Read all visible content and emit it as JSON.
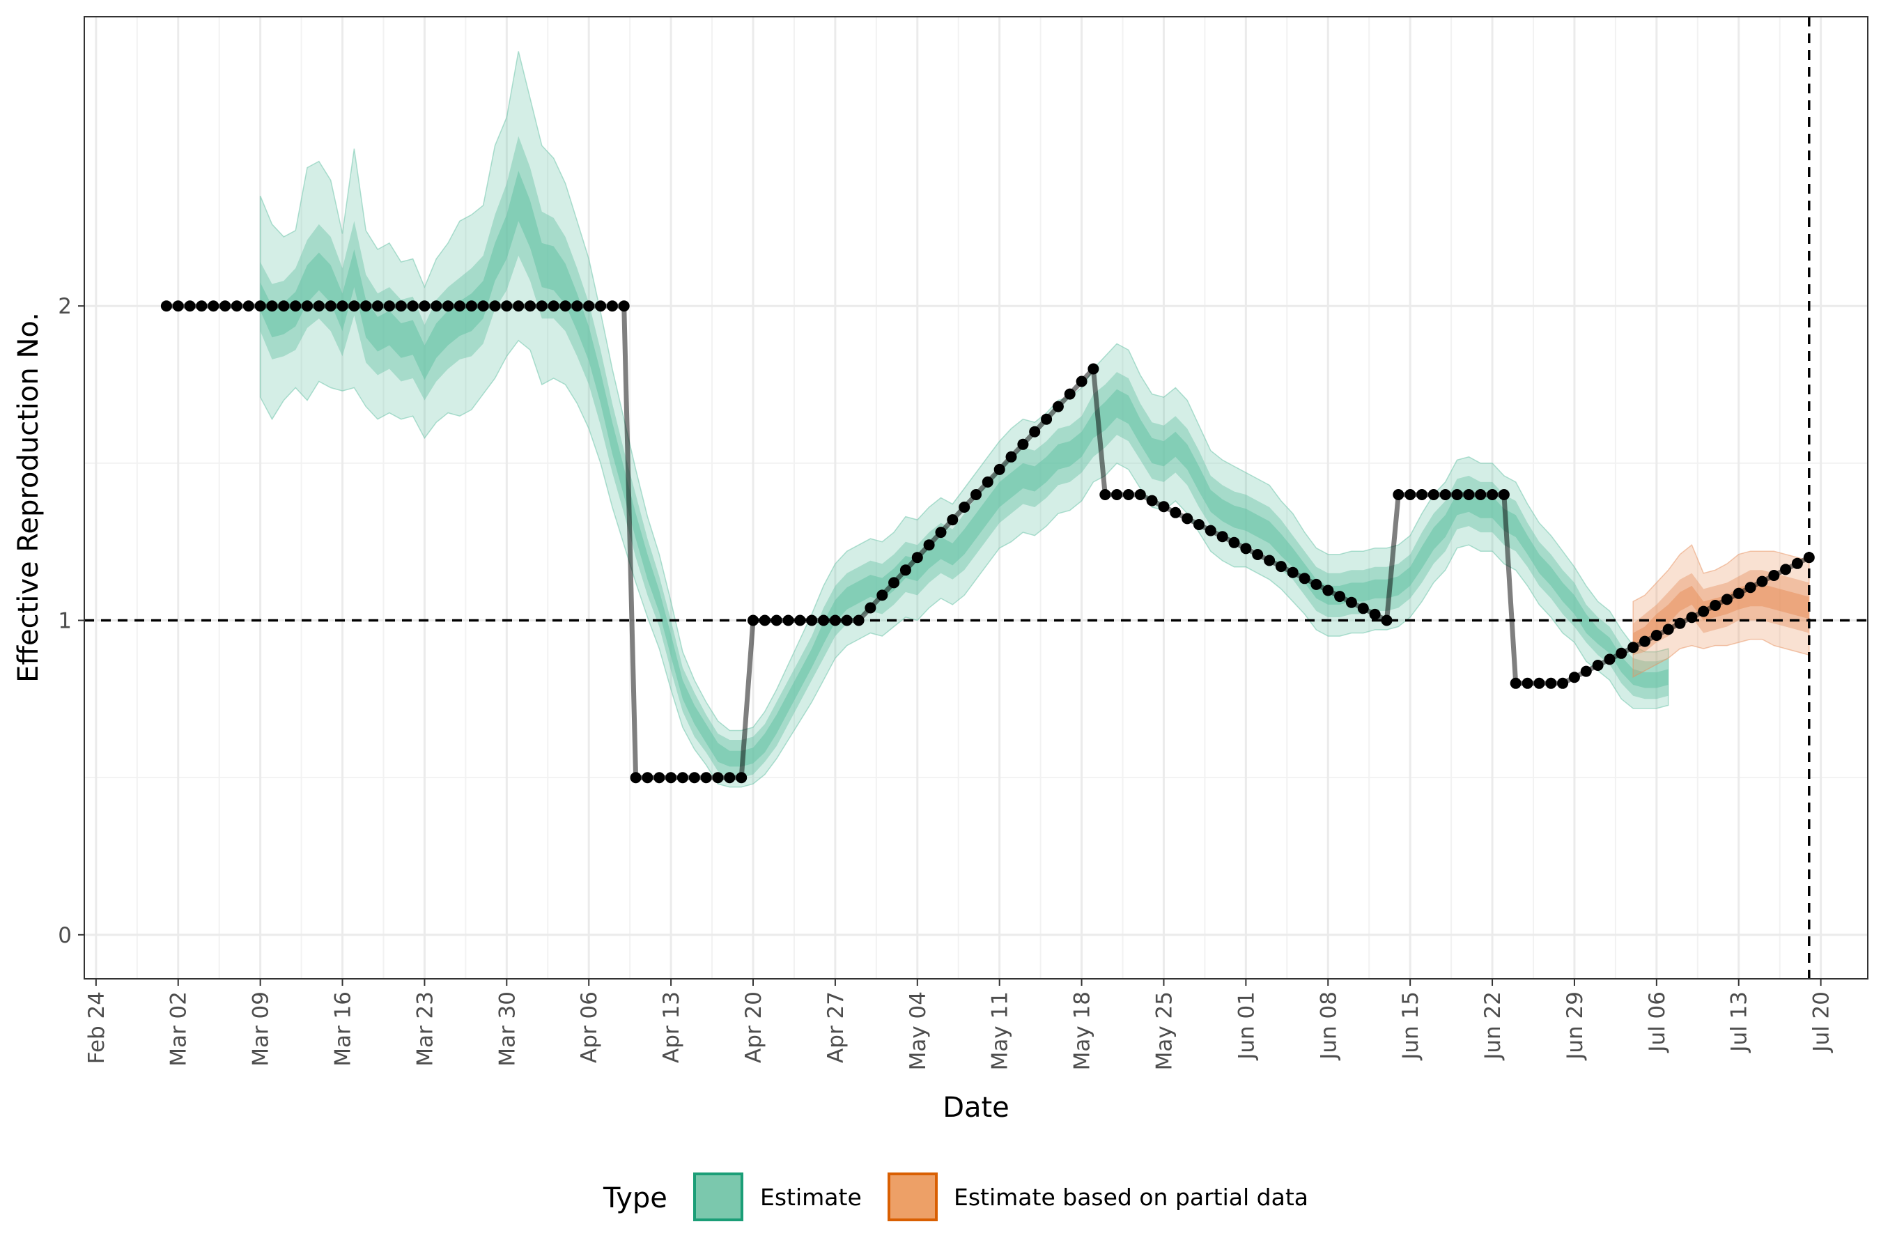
{
  "chart_data": {
    "type": "line",
    "xlabel": "Date",
    "ylabel": "Effective Reproduction No.",
    "ylim": [
      -0.14,
      2.92
    ],
    "yticks": [
      0,
      1,
      2
    ],
    "xlim": [
      "2020-02-23",
      "2020-07-24"
    ],
    "xticks": [
      "2020-02-24",
      "2020-03-02",
      "2020-03-09",
      "2020-03-16",
      "2020-03-23",
      "2020-03-30",
      "2020-04-06",
      "2020-04-13",
      "2020-04-20",
      "2020-04-27",
      "2020-05-04",
      "2020-05-11",
      "2020-05-18",
      "2020-05-25",
      "2020-06-01",
      "2020-06-08",
      "2020-06-15",
      "2020-06-22",
      "2020-06-29",
      "2020-07-06",
      "2020-07-13",
      "2020-07-20"
    ],
    "xtick_labels": [
      "Feb 24",
      "Mar 02",
      "Mar 09",
      "Mar 16",
      "Mar 23",
      "Mar 30",
      "Apr 06",
      "Apr 13",
      "Apr 20",
      "Apr 27",
      "May 04",
      "May 11",
      "May 18",
      "May 25",
      "Jun 01",
      "Jun 08",
      "Jun 15",
      "Jun 22",
      "Jun 29",
      "Jul 06",
      "Jul 13",
      "Jul 20"
    ],
    "grid": true,
    "reference_lines": {
      "y": 1,
      "x": "2020-07-19"
    },
    "truth": {
      "segments": [
        {
          "start": "2020-03-01",
          "end": "2020-04-09",
          "from": 2.0,
          "to": 2.0
        },
        {
          "start": "2020-04-10",
          "end": "2020-04-19",
          "from": 0.5,
          "to": 0.5
        },
        {
          "start": "2020-04-20",
          "end": "2020-04-29",
          "from": 1.0,
          "to": 1.0
        },
        {
          "start": "2020-04-29",
          "end": "2020-05-19",
          "from": 1.0,
          "to": 1.8
        },
        {
          "start": "2020-05-20",
          "end": "2020-05-23",
          "from": 1.4,
          "to": 1.4
        },
        {
          "start": "2020-05-23",
          "end": "2020-06-13",
          "from": 1.4,
          "to": 1.0
        },
        {
          "start": "2020-06-14",
          "end": "2020-06-23",
          "from": 1.4,
          "to": 1.4
        },
        {
          "start": "2020-06-24",
          "end": "2020-06-28",
          "from": 0.8,
          "to": 0.8
        },
        {
          "start": "2020-06-28",
          "end": "2020-07-19",
          "from": 0.8,
          "to": 1.2
        }
      ]
    },
    "estimate": {
      "name": "Estimate",
      "color": "#1b9e77",
      "fill": "#66c2a5",
      "start": "2020-03-09",
      "median": [
        2.03,
        1.95,
        1.96,
        1.99,
        2.07,
        2.11,
        2.07,
        1.98,
        2.12,
        1.96,
        1.91,
        1.93,
        1.89,
        1.9,
        1.82,
        1.89,
        1.93,
        1.96,
        1.98,
        2.02,
        2.14,
        2.22,
        2.35,
        2.26,
        2.13,
        2.12,
        2.07,
        1.98,
        1.88,
        1.74,
        1.58,
        1.44,
        1.3,
        1.17,
        1.06,
        0.92,
        0.78,
        0.7,
        0.64,
        0.58,
        0.56,
        0.56,
        0.57,
        0.61,
        0.67,
        0.74,
        0.81,
        0.88,
        0.96,
        1.03,
        1.07,
        1.09,
        1.11,
        1.1,
        1.13,
        1.17,
        1.16,
        1.2,
        1.23,
        1.21,
        1.25,
        1.3,
        1.35,
        1.4,
        1.43,
        1.46,
        1.45,
        1.48,
        1.52,
        1.53,
        1.56,
        1.62,
        1.65,
        1.69,
        1.67,
        1.6,
        1.54,
        1.53,
        1.56,
        1.52,
        1.45,
        1.38,
        1.35,
        1.33,
        1.32,
        1.3,
        1.28,
        1.24,
        1.2,
        1.15,
        1.1,
        1.08,
        1.08,
        1.09,
        1.09,
        1.1,
        1.1,
        1.11,
        1.14,
        1.2,
        1.26,
        1.3,
        1.37,
        1.38,
        1.36,
        1.36,
        1.32,
        1.3,
        1.24,
        1.18,
        1.14,
        1.09,
        1.05,
        0.99,
        0.95,
        0.92,
        0.86,
        0.82,
        0.81,
        0.81,
        0.82
      ],
      "inner": [
        0.045,
        0.05,
        0.05,
        0.055,
        0.06,
        0.06,
        0.06,
        0.06,
        0.06,
        0.06,
        0.055,
        0.055,
        0.055,
        0.055,
        0.055,
        0.055,
        0.055,
        0.055,
        0.06,
        0.06,
        0.06,
        0.07,
        0.08,
        0.075,
        0.07,
        0.07,
        0.065,
        0.06,
        0.055,
        0.05,
        0.05,
        0.045,
        0.04,
        0.04,
        0.035,
        0.035,
        0.03,
        0.03,
        0.03,
        0.03,
        0.025,
        0.025,
        0.025,
        0.03,
        0.03,
        0.03,
        0.03,
        0.03,
        0.035,
        0.035,
        0.035,
        0.035,
        0.035,
        0.035,
        0.035,
        0.035,
        0.035,
        0.035,
        0.035,
        0.035,
        0.04,
        0.04,
        0.04,
        0.04,
        0.04,
        0.04,
        0.04,
        0.04,
        0.04,
        0.04,
        0.04,
        0.04,
        0.045,
        0.045,
        0.045,
        0.04,
        0.04,
        0.04,
        0.04,
        0.04,
        0.04,
        0.035,
        0.035,
        0.035,
        0.035,
        0.035,
        0.035,
        0.035,
        0.03,
        0.03,
        0.03,
        0.03,
        0.03,
        0.03,
        0.03,
        0.03,
        0.03,
        0.03,
        0.03,
        0.035,
        0.035,
        0.035,
        0.035,
        0.035,
        0.035,
        0.035,
        0.035,
        0.035,
        0.03,
        0.03,
        0.03,
        0.03,
        0.03,
        0.03,
        0.025,
        0.025,
        0.025,
        0.025,
        0.025,
        0.025,
        0.025
      ],
      "mid": [
        0.11,
        0.12,
        0.12,
        0.13,
        0.14,
        0.15,
        0.15,
        0.14,
        0.15,
        0.14,
        0.13,
        0.13,
        0.13,
        0.13,
        0.12,
        0.13,
        0.13,
        0.13,
        0.14,
        0.14,
        0.15,
        0.17,
        0.19,
        0.18,
        0.17,
        0.16,
        0.15,
        0.14,
        0.13,
        0.12,
        0.11,
        0.1,
        0.1,
        0.09,
        0.08,
        0.08,
        0.07,
        0.07,
        0.06,
        0.06,
        0.06,
        0.06,
        0.06,
        0.06,
        0.07,
        0.07,
        0.07,
        0.07,
        0.08,
        0.08,
        0.08,
        0.08,
        0.08,
        0.08,
        0.08,
        0.08,
        0.08,
        0.08,
        0.08,
        0.08,
        0.09,
        0.09,
        0.09,
        0.09,
        0.09,
        0.09,
        0.09,
        0.09,
        0.09,
        0.09,
        0.09,
        0.1,
        0.1,
        0.1,
        0.1,
        0.09,
        0.09,
        0.09,
        0.09,
        0.09,
        0.09,
        0.08,
        0.08,
        0.08,
        0.08,
        0.08,
        0.08,
        0.08,
        0.07,
        0.07,
        0.07,
        0.07,
        0.07,
        0.07,
        0.07,
        0.07,
        0.07,
        0.07,
        0.07,
        0.08,
        0.08,
        0.08,
        0.08,
        0.08,
        0.08,
        0.08,
        0.08,
        0.08,
        0.07,
        0.07,
        0.07,
        0.07,
        0.07,
        0.06,
        0.06,
        0.06,
        0.06,
        0.06,
        0.06,
        0.06,
        0.06
      ],
      "outer": [
        0.32,
        0.31,
        0.26,
        0.25,
        0.37,
        0.35,
        0.33,
        0.25,
        0.38,
        0.28,
        0.27,
        0.27,
        0.25,
        0.25,
        0.24,
        0.26,
        0.27,
        0.31,
        0.31,
        0.3,
        0.37,
        0.38,
        0.46,
        0.4,
        0.38,
        0.35,
        0.32,
        0.29,
        0.27,
        0.24,
        0.22,
        0.2,
        0.18,
        0.16,
        0.15,
        0.14,
        0.12,
        0.11,
        0.1,
        0.1,
        0.09,
        0.09,
        0.09,
        0.1,
        0.11,
        0.12,
        0.13,
        0.14,
        0.15,
        0.15,
        0.15,
        0.15,
        0.15,
        0.15,
        0.15,
        0.16,
        0.16,
        0.16,
        0.16,
        0.16,
        0.17,
        0.17,
        0.17,
        0.17,
        0.18,
        0.18,
        0.18,
        0.18,
        0.18,
        0.18,
        0.18,
        0.18,
        0.19,
        0.19,
        0.19,
        0.18,
        0.18,
        0.18,
        0.18,
        0.18,
        0.17,
        0.16,
        0.16,
        0.16,
        0.15,
        0.15,
        0.15,
        0.14,
        0.14,
        0.13,
        0.13,
        0.13,
        0.13,
        0.13,
        0.13,
        0.13,
        0.13,
        0.13,
        0.13,
        0.14,
        0.14,
        0.14,
        0.14,
        0.14,
        0.14,
        0.14,
        0.14,
        0.14,
        0.13,
        0.13,
        0.13,
        0.13,
        0.12,
        0.12,
        0.11,
        0.11,
        0.11,
        0.1,
        0.09,
        0.09,
        0.09
      ]
    },
    "partial": {
      "name": "Estimate based on partial data",
      "color": "#d95f02",
      "fill": "#e8925f",
      "start": "2020-07-04",
      "median": [
        0.94,
        0.96,
        0.99,
        1.02,
        1.06,
        1.08,
        1.03,
        1.04,
        1.05,
        1.07,
        1.08,
        1.08,
        1.07,
        1.06,
        1.05,
        1.04
      ],
      "inner": [
        0.02,
        0.02,
        0.03,
        0.03,
        0.03,
        0.03,
        0.03,
        0.03,
        0.03,
        0.035,
        0.035,
        0.035,
        0.035,
        0.035,
        0.035,
        0.035
      ],
      "mid": [
        0.05,
        0.06,
        0.06,
        0.07,
        0.07,
        0.07,
        0.07,
        0.07,
        0.07,
        0.07,
        0.08,
        0.08,
        0.08,
        0.08,
        0.08,
        0.08
      ],
      "outer": [
        0.12,
        0.12,
        0.13,
        0.14,
        0.15,
        0.16,
        0.12,
        0.12,
        0.13,
        0.14,
        0.14,
        0.14,
        0.15,
        0.15,
        0.15,
        0.15
      ]
    },
    "legend": {
      "title": "Type",
      "entries": [
        "Estimate",
        "Estimate based on partial data"
      ],
      "placement": "bottom"
    }
  }
}
